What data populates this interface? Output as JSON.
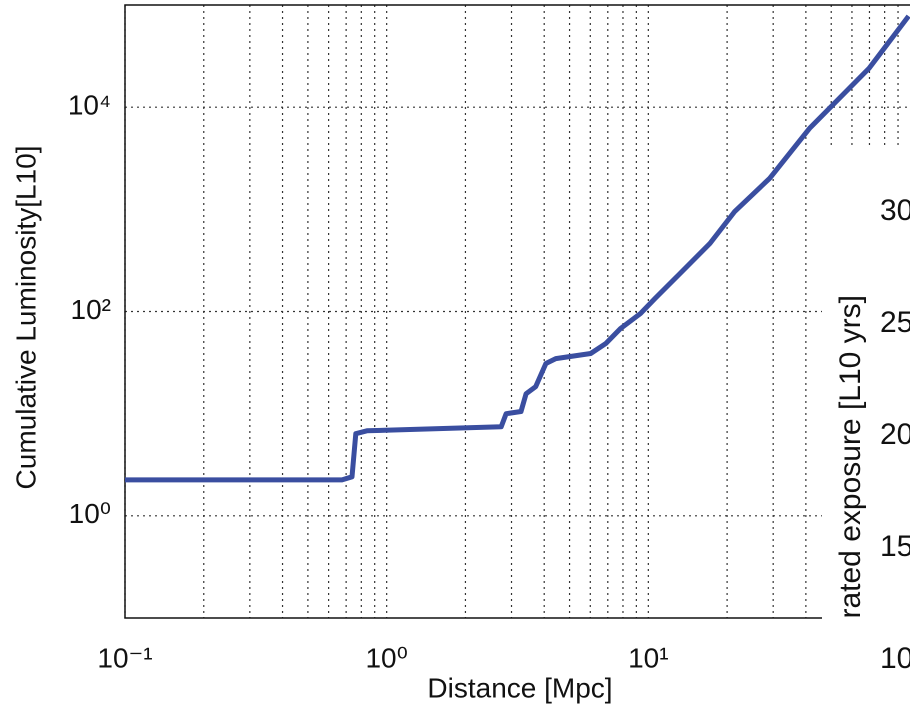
{
  "chart_data": [
    {
      "type": "line",
      "log_x": true,
      "log_y": true,
      "grid": true,
      "minor_grid_x": true,
      "xlabel": "Distance [Mpc]",
      "ylabel": "Cumulative Luminosity[L10]",
      "color": "#3a4ea0",
      "xlim": [
        0.1,
        100
      ],
      "ylim": [
        0.1,
        100000
      ],
      "xticks": [
        {
          "value": 0.1,
          "label": "10⁻¹"
        },
        {
          "value": 1,
          "label": "10⁰"
        },
        {
          "value": 10,
          "label": "10¹"
        }
      ],
      "yticks": [
        {
          "value": 1,
          "label": "10⁰"
        },
        {
          "value": 100,
          "label": "10²"
        },
        {
          "value": 10000,
          "label": "10⁴"
        }
      ],
      "x": [
        0.1,
        0.675,
        0.737,
        0.762,
        0.84,
        2.74,
        2.86,
        3.26,
        3.41,
        3.71,
        4.06,
        4.43,
        6.02,
        6.87,
        7.82,
        9.33,
        10.6,
        13.2,
        17.2,
        21.4,
        29.1,
        41.3,
        69.8,
        98.8
      ],
      "values": [
        2.25,
        2.25,
        2.41,
        6.37,
        6.8,
        7.46,
        10,
        10.5,
        15.7,
        18.4,
        31,
        34.6,
        38.8,
        48.5,
        68,
        95.6,
        134,
        235,
        464,
        955,
        2011,
        6200,
        24000,
        77800
      ]
    },
    {
      "type": "line",
      "ylabel": "rated exposure [L10  yrs]",
      "ylim": [
        10,
        30
      ],
      "yticks": [
        10,
        15,
        20,
        25,
        30
      ]
    }
  ]
}
